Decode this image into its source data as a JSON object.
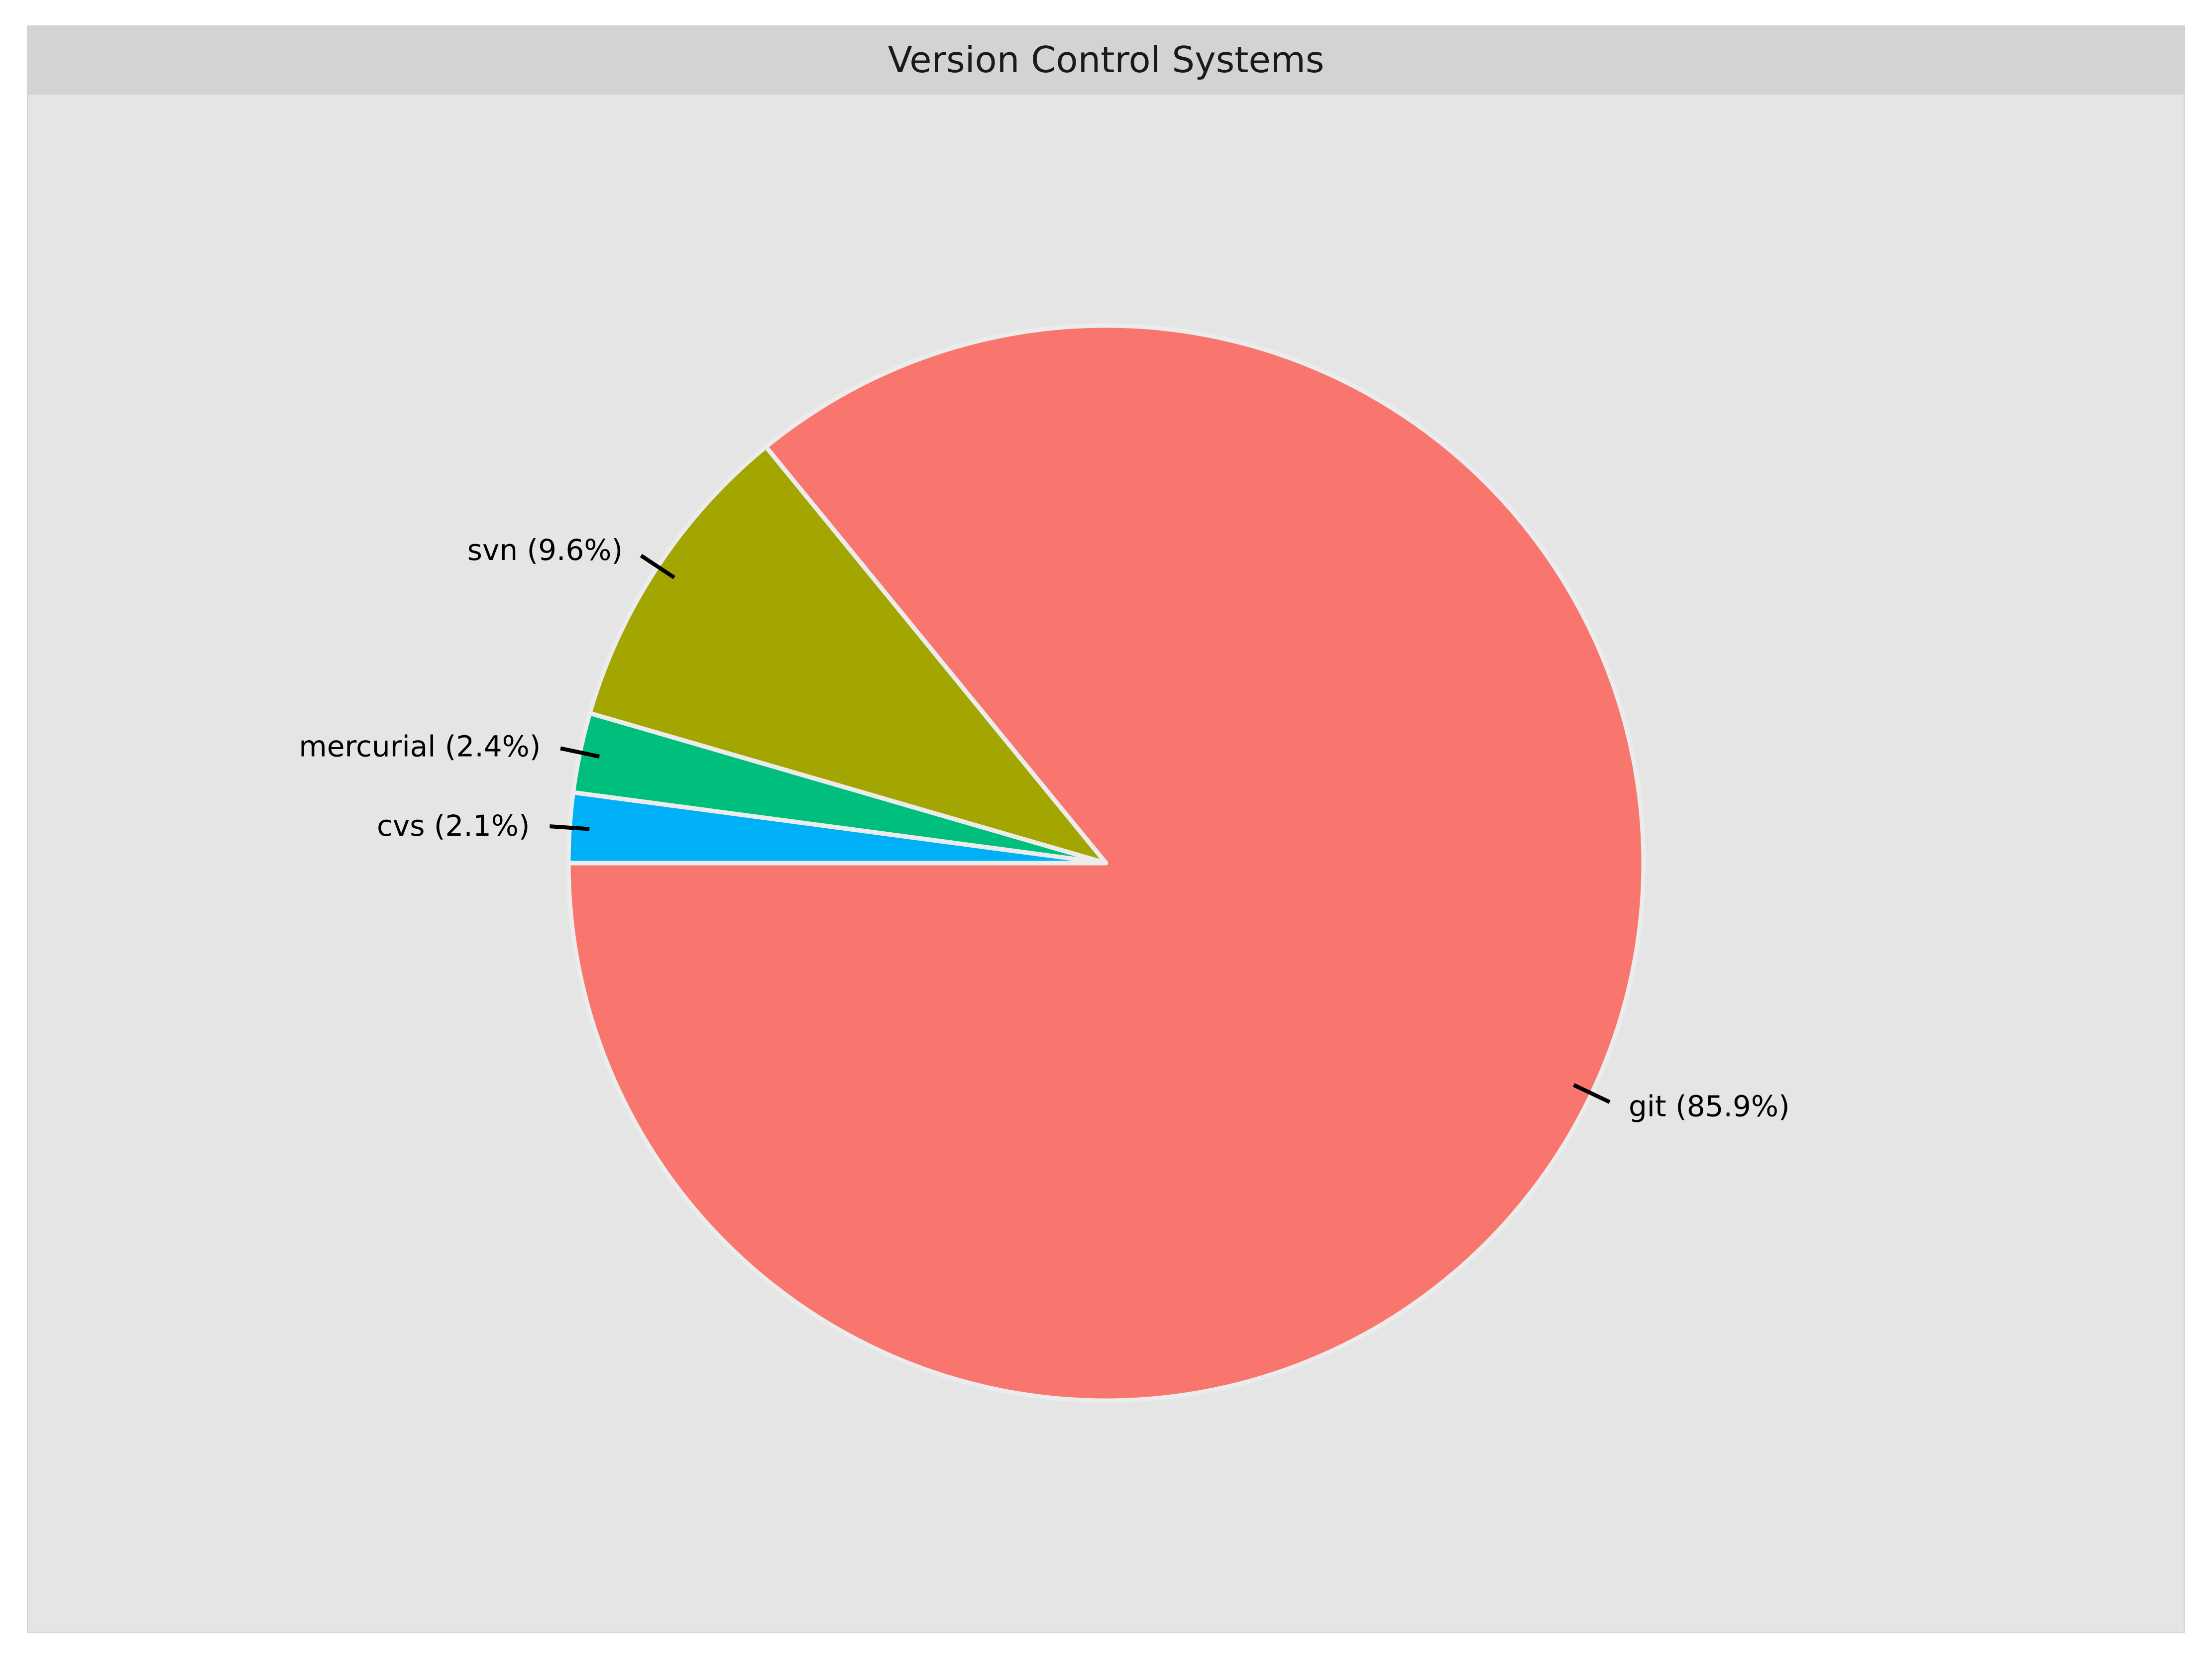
{
  "chart_data": {
    "type": "pie",
    "title": "Version Control Systems",
    "categories": [
      "git",
      "svn",
      "mercurial",
      "cvs"
    ],
    "values": [
      85.9,
      9.6,
      2.4,
      2.1
    ],
    "labels": [
      "git (85.9%)",
      "svn (9.6%)",
      "mercurial (2.4%)",
      "cvs (2.1%)"
    ],
    "colors": [
      "#f8766d",
      "#a3a500",
      "#00bf7d",
      "#00b0f6"
    ],
    "start": "west, clockwise: cvs, mercurial, svn, git",
    "grid": false,
    "legend": "none"
  }
}
